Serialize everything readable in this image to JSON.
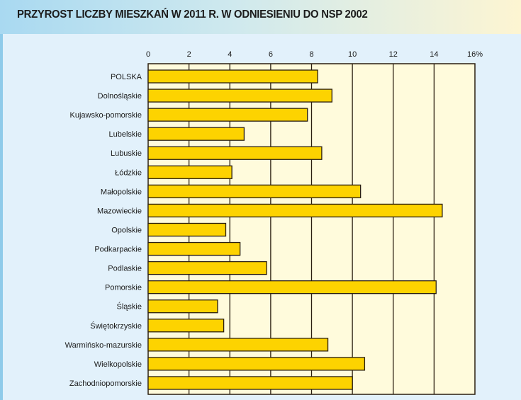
{
  "chart_data": {
    "type": "bar",
    "orientation": "horizontal",
    "title": "PRZYROST LICZBY MIESZKAŃ W 2011 R. W ODNIESIENIU DO NSP 2002",
    "categories": [
      "POLSKA",
      "Dolnośląskie",
      "Kujawsko-pomorskie",
      "Lubelskie",
      "Lubuskie",
      "Łódzkie",
      "Małopolskie",
      "Mazowieckie",
      "Opolskie",
      "Podkarpackie",
      "Podlaskie",
      "Pomorskie",
      "Śląskie",
      "Świętokrzyskie",
      "Warmińsko-mazurskie",
      "Wielkopolskie",
      "Zachodniopomorskie"
    ],
    "values": [
      8.3,
      9.0,
      7.8,
      4.7,
      8.5,
      4.1,
      10.4,
      14.4,
      3.8,
      4.5,
      5.8,
      14.1,
      3.4,
      3.7,
      8.8,
      10.6,
      10.0
    ],
    "xlim": [
      0,
      16
    ],
    "xticks": [
      "0",
      "2",
      "4",
      "6",
      "8",
      "10",
      "12",
      "14",
      "16%"
    ],
    "xaxis_position": "top",
    "grid": true,
    "colors": {
      "bar": "#fdd300",
      "plot_bg": "#fffbdc",
      "outline": "#2a1e10"
    }
  }
}
